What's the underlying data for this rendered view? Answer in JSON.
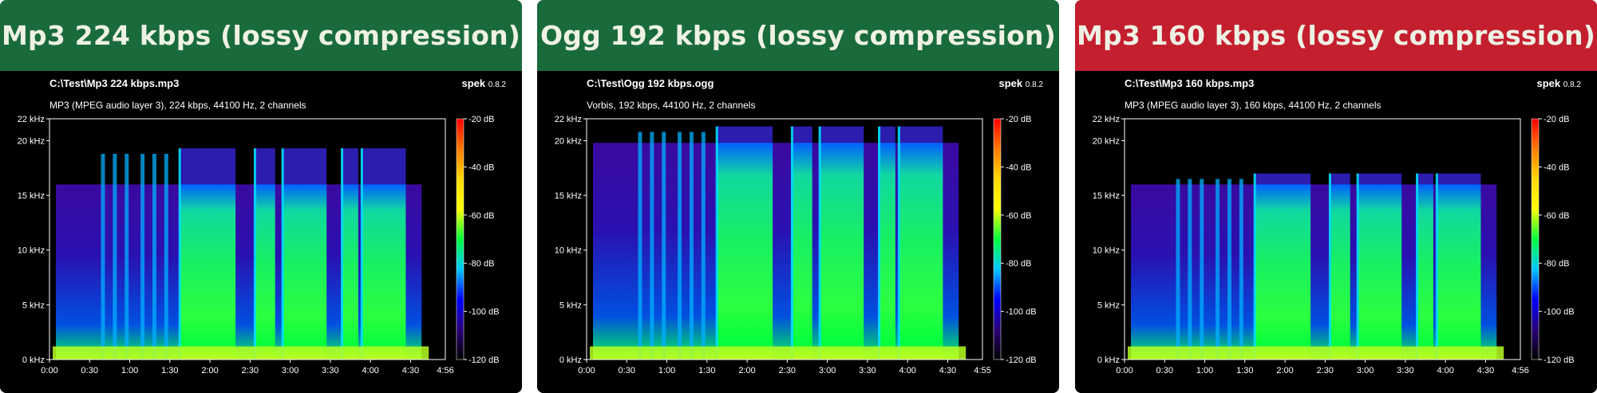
{
  "panels": [
    {
      "id": "mp3-224",
      "header_title": "Mp3 224 kbps (lossy compression)",
      "header_color": "#1a6b3c",
      "file_path": "C:\\Test\\Mp3 224 kbps.mp3",
      "format_info": "MP3 (MPEG audio layer 3), 224 kbps, 44100 Hz, 2 channels",
      "brand": "spek",
      "version": "0.8.2",
      "cutoff_khz": 16,
      "peak_khz": 19.3,
      "duration_label": "4:56"
    },
    {
      "id": "ogg-192",
      "header_title": "Ogg 192 kbps (lossy compression)",
      "header_color": "#1a6b3c",
      "file_path": "C:\\Test\\Ogg 192 kbps.ogg",
      "format_info": "Vorbis, 192 kbps, 44100 Hz, 2 channels",
      "brand": "spek",
      "version": "0.8.2",
      "cutoff_khz": 19.8,
      "peak_khz": 21.3,
      "duration_label": "4:55"
    },
    {
      "id": "mp3-160",
      "header_title": "Mp3 160 kbps (lossy compression)",
      "header_color": "#c41f2f",
      "file_path": "C:\\Test\\Mp3 160 kbps.mp3",
      "format_info": "MP3 (MPEG audio layer 3), 160 kbps, 44100 Hz, 2 channels",
      "brand": "spek",
      "version": "0.8.2",
      "cutoff_khz": 16,
      "peak_khz": 17,
      "duration_label": "4:56"
    }
  ],
  "chart_data": {
    "type": "heatmap",
    "x_axis_ticks": [
      "0:00",
      "0:30",
      "1:00",
      "1:30",
      "2:00",
      "2:30",
      "3:00",
      "3:30",
      "4:00",
      "4:30"
    ],
    "y_axis_ticks": [
      "0 kHz",
      "5 kHz",
      "10 kHz",
      "15 kHz",
      "20 kHz",
      "22 kHz"
    ],
    "y_axis_values_khz": [
      0,
      5,
      10,
      15,
      20,
      22
    ],
    "ylim_khz": [
      0,
      22
    ],
    "colorbar_ticks": [
      "-20 dB",
      "-40 dB",
      "-60 dB",
      "-80 dB",
      "-100 dB",
      "-120 dB"
    ],
    "colorbar_values_db": [
      -20,
      -40,
      -60,
      -80,
      -100,
      -120
    ],
    "colorbar_colors": [
      "#ff0000",
      "#ff7a00",
      "#ffd800",
      "#ffff00",
      "#00ff3c",
      "#00c8ff",
      "#0000ff",
      "#2a0078",
      "#000000"
    ]
  }
}
